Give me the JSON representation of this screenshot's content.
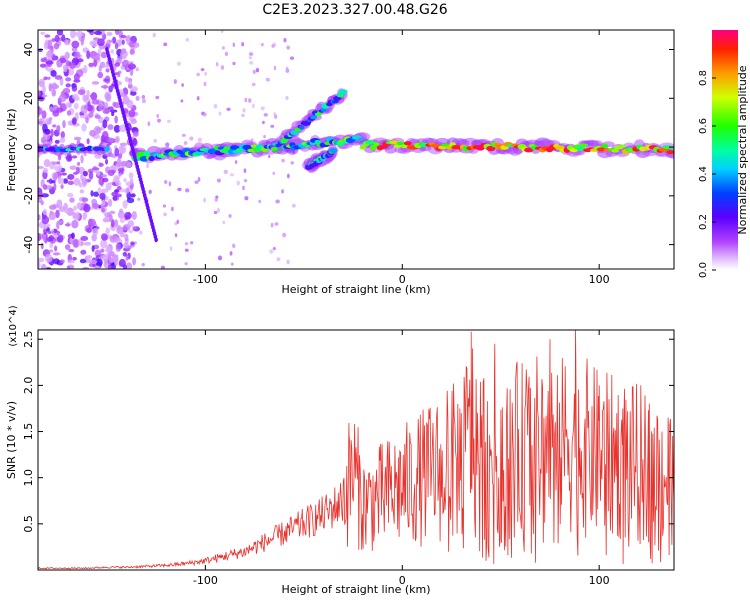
{
  "title": "C2E3.2023.327.00.48.G26",
  "chart_data": [
    {
      "type": "heatmap",
      "xlabel": "Height of straight line (km)",
      "ylabel": "Frequency (Hz)",
      "xlim": [
        -185,
        138
      ],
      "ylim": [
        -50,
        48
      ],
      "xticks": [
        -100,
        0,
        100
      ],
      "yticks": [
        -40,
        -20,
        0,
        20,
        40
      ],
      "colorbar": {
        "label": "Normalized spectral amplitude",
        "range": [
          0,
          1
        ],
        "ticks": [
          "0.0",
          "0.2",
          "0.4",
          "0.6",
          "0.8"
        ]
      },
      "features": [
        {
          "name": "main-trace",
          "segments": [
            {
              "x": [
                -135,
                -20
              ],
              "y": [
                -4,
                3
              ],
              "level": 0.45
            },
            {
              "x": [
                -20,
                138
              ],
              "y": [
                1,
                -1
              ],
              "level": 0.75
            }
          ]
        },
        {
          "name": "steep-streak",
          "x": [
            -150,
            -125
          ],
          "y": [
            40,
            -38
          ],
          "level": 0.15
        },
        {
          "name": "rising-branch",
          "x": [
            -65,
            -30
          ],
          "y": [
            0,
            22
          ],
          "level": 0.4
        },
        {
          "name": "lower-branch",
          "x": [
            -48,
            -35
          ],
          "y": [
            -8,
            -2
          ],
          "level": 0.35
        }
      ]
    },
    {
      "type": "line",
      "xlabel": "Height of straight line (km)",
      "ylabel": "SNR (10 * v/v)",
      "y_multiplier": "(x10^4)",
      "xlim": [
        -185,
        138
      ],
      "ylim": [
        0,
        2.6
      ],
      "xticks": [
        -100,
        0,
        100
      ],
      "yticks": [
        0.5,
        1.0,
        1.5,
        2.0,
        2.5
      ],
      "ytick_labels": [
        "0.5",
        "1.0",
        "1.5",
        "2.0",
        "2.5"
      ],
      "series": [
        {
          "color": "#e8332e",
          "x": [
            -185,
            -170,
            -160,
            -150,
            -140,
            -130,
            -120,
            -110,
            -100,
            -90,
            -80,
            -70,
            -60,
            -50,
            -40,
            -30,
            -25,
            -20,
            -10,
            0,
            10,
            20,
            30,
            35,
            40,
            50,
            60,
            70,
            75,
            80,
            88,
            90,
            100,
            110,
            120,
            130,
            135,
            138
          ],
          "y": [
            0.02,
            0.02,
            0.02,
            0.03,
            0.03,
            0.04,
            0.05,
            0.07,
            0.1,
            0.15,
            0.2,
            0.3,
            0.4,
            0.5,
            0.6,
            0.75,
            1.1,
            0.7,
            0.8,
            0.9,
            1.0,
            1.1,
            1.2,
            1.5,
            1.3,
            1.25,
            1.3,
            1.35,
            1.4,
            1.3,
            1.5,
            1.35,
            1.25,
            1.2,
            1.15,
            1.1,
            1.0,
            0.85
          ],
          "peaks": [
            {
              "x": -27,
              "y": 1.45
            },
            {
              "x": 35,
              "y": 2.58
            },
            {
              "x": 47,
              "y": 2.45
            },
            {
              "x": 75,
              "y": 2.5
            },
            {
              "x": 88,
              "y": 2.6
            },
            {
              "x": 100,
              "y": 2.0
            },
            {
              "x": 112,
              "y": 1.75
            },
            {
              "x": 125,
              "y": 1.73
            },
            {
              "x": 135,
              "y": 1.65
            }
          ]
        }
      ]
    }
  ]
}
